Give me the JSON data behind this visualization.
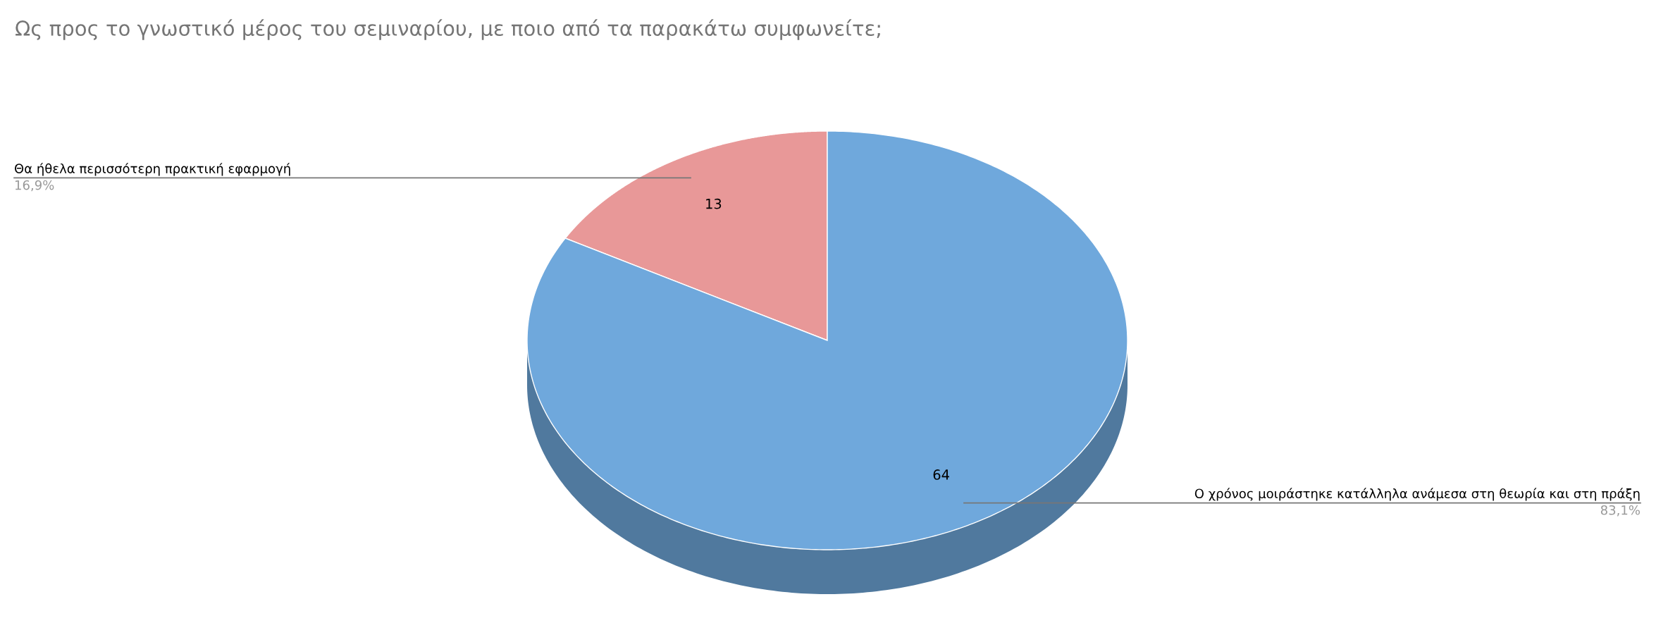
{
  "chart_data": {
    "type": "pie",
    "title": "Ως προς το γνωστικό μέρος του σεμιναρίου, με ποιο από τα παρακάτω συμφωνείτε;",
    "categories": [
      "Θα ήθελα περισσότερη πρακτική εφαρμογή",
      "Ο χρόνος μοιράστηκε κατάλληλα ανάμεσα στη θεωρία και στη πράξη"
    ],
    "values": [
      13,
      64
    ],
    "colors": [
      "#e89898",
      "#6fa8dc"
    ],
    "data_labels": true,
    "annotations": [
      "16,9%",
      "83,1%"
    ]
  }
}
